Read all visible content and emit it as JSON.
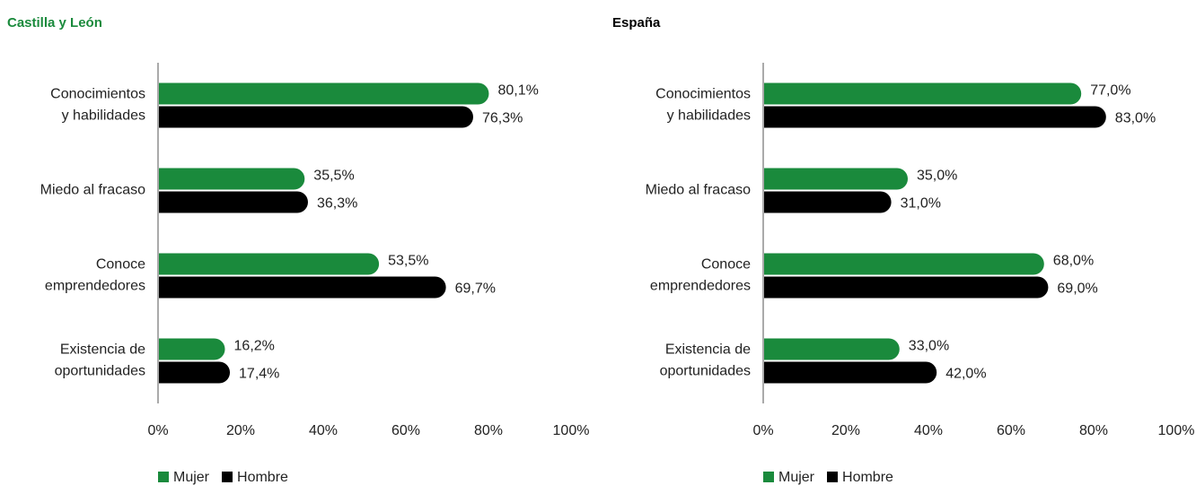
{
  "chart_data": [
    {
      "type": "bar",
      "orientation": "horizontal",
      "title": "Castilla y León",
      "title_color": "#1a8a3c",
      "categories": [
        [
          "Conocimientos",
          "y habilidades"
        ],
        [
          "Miedo al fracaso"
        ],
        [
          "Conoce",
          "emprendedores"
        ],
        [
          "Existencia de",
          "oportunidades"
        ]
      ],
      "series": [
        {
          "name": "Mujer",
          "color": "#1a8a3c",
          "values": [
            80.1,
            35.5,
            53.5,
            16.2
          ],
          "value_labels": [
            "80,1%",
            "35,5%",
            "53,5%",
            "16,2%"
          ]
        },
        {
          "name": "Hombre",
          "color": "#000000",
          "values": [
            76.3,
            36.3,
            69.7,
            17.4
          ],
          "value_labels": [
            "76,3%",
            "36,3%",
            "69,7%",
            "17,4%"
          ]
        }
      ],
      "xlim": [
        0,
        100
      ],
      "xticks": [
        {
          "value": 0,
          "label": "0%"
        },
        {
          "value": 20,
          "label": "20%"
        },
        {
          "value": 40,
          "label": "40%"
        },
        {
          "value": 60,
          "label": "60%"
        },
        {
          "value": 80,
          "label": "80%"
        },
        {
          "value": 100,
          "label": "100%"
        }
      ],
      "legend": "bottom-left"
    },
    {
      "type": "bar",
      "orientation": "horizontal",
      "title": "España",
      "title_color": "#000000",
      "categories": [
        [
          "Conocimientos",
          "y habilidades"
        ],
        [
          "Miedo al fracaso"
        ],
        [
          "Conoce",
          "emprendedores"
        ],
        [
          "Existencia de",
          "oportunidades"
        ]
      ],
      "series": [
        {
          "name": "Mujer",
          "color": "#1a8a3c",
          "values": [
            77.0,
            35.0,
            68.0,
            33.0
          ],
          "value_labels": [
            "77,0%",
            "35,0%",
            "68,0%",
            "33,0%"
          ]
        },
        {
          "name": "Hombre",
          "color": "#000000",
          "values": [
            83.0,
            31.0,
            69.0,
            42.0
          ],
          "value_labels": [
            "83,0%",
            "31,0%",
            "69,0%",
            "42,0%"
          ]
        }
      ],
      "xlim": [
        0,
        100
      ],
      "xticks": [
        {
          "value": 0,
          "label": "0%"
        },
        {
          "value": 20,
          "label": "20%"
        },
        {
          "value": 40,
          "label": "40%"
        },
        {
          "value": 60,
          "label": "60%"
        },
        {
          "value": 80,
          "label": "80%"
        },
        {
          "value": 100,
          "label": "100%"
        }
      ],
      "legend": "bottom-left"
    }
  ]
}
